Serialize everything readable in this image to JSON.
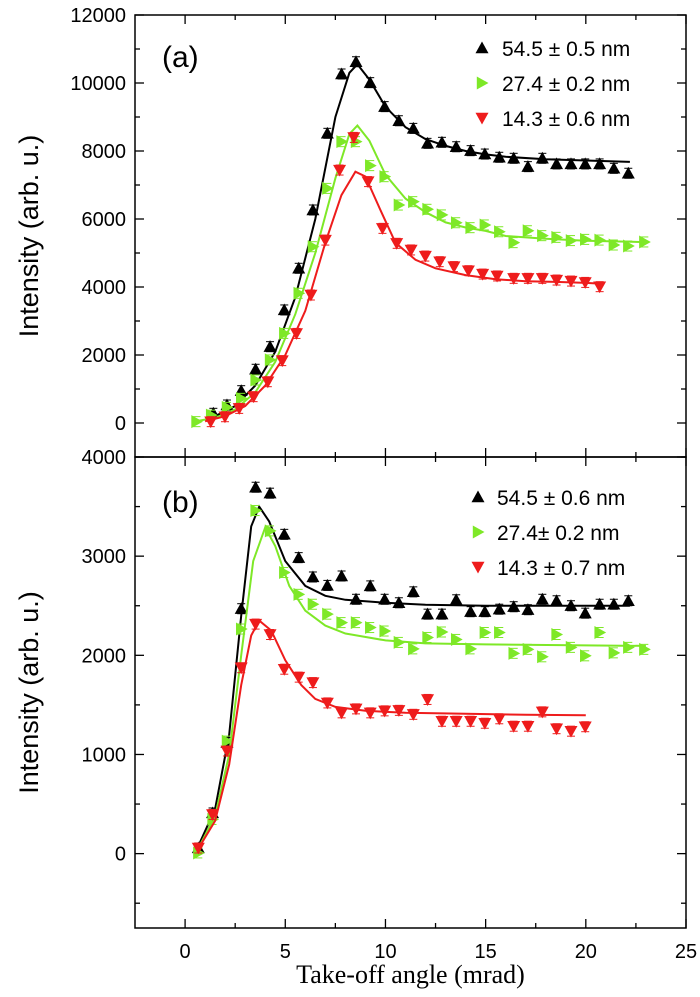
{
  "chart_data": [
    {
      "type": "scatter",
      "panel_label": "(a)",
      "xlabel": "Take-off angle (mrad)",
      "ylabel": "Intensity (arb. u.)",
      "xlim": [
        -2.5,
        25
      ],
      "ylim": [
        -1000,
        12000
      ],
      "xticks": [
        0,
        5,
        10,
        15,
        20,
        25
      ],
      "yticks": [
        0,
        2000,
        4000,
        6000,
        8000,
        10000,
        12000
      ],
      "grid": false,
      "legend_position": "top-right",
      "series": [
        {
          "name": "54.5 ± 0.5 nm",
          "color": "#000000",
          "marker": "triangle-up",
          "x": [
            1.41,
            2.09,
            2.8,
            3.52,
            4.24,
            4.95,
            5.67,
            6.38,
            7.1,
            7.81,
            8.53,
            9.24,
            9.96,
            10.67,
            11.39,
            12.1,
            12.82,
            13.53,
            14.25,
            14.96,
            15.68,
            16.4,
            17.11,
            17.83,
            18.54,
            19.26,
            19.97,
            20.69,
            21.4,
            22.12
          ],
          "y": [
            285,
            529,
            950,
            1580,
            2245,
            3325,
            4550,
            6265,
            8520,
            10265,
            10625,
            10010,
            9305,
            8890,
            8665,
            8225,
            8255,
            8125,
            8010,
            7910,
            7815,
            7785,
            7540,
            7785,
            7620,
            7620,
            7620,
            7620,
            7490,
            7345
          ],
          "fit_x": [
            1.5,
            2.5,
            3.5,
            4.5,
            5.5,
            6.5,
            7.5,
            8.2,
            8.6,
            9.2,
            10,
            11,
            12,
            13,
            14,
            15,
            16,
            18,
            20,
            22.2
          ],
          "fit_y": [
            200,
            500,
            1100,
            2100,
            3700,
            6000,
            9000,
            10300,
            10550,
            10100,
            9300,
            8700,
            8350,
            8150,
            8000,
            7900,
            7830,
            7760,
            7720,
            7680
          ]
        },
        {
          "name": "27.4 ± 0.2 nm",
          "color": "#7ee827",
          "marker": "triangle-right",
          "x": [
            0.57,
            1.3,
            2.09,
            2.8,
            3.52,
            4.24,
            4.95,
            5.67,
            6.38,
            7.1,
            7.81,
            8.53,
            9.24,
            9.96,
            10.67,
            11.39,
            12.1,
            12.82,
            13.53,
            14.25,
            14.96,
            15.68,
            16.4,
            17.11,
            17.83,
            18.54,
            19.26,
            19.97,
            20.69,
            21.4,
            22.12,
            22.92
          ],
          "y": [
            40,
            230,
            460,
            725,
            1265,
            1855,
            2635,
            3815,
            5185,
            6900,
            8275,
            8275,
            7570,
            7245,
            6410,
            6510,
            6285,
            6120,
            5890,
            5745,
            5825,
            5625,
            5305,
            5655,
            5510,
            5460,
            5365,
            5400,
            5380,
            5235,
            5205,
            5325
          ],
          "fit_x": [
            0.5,
            1.5,
            2.5,
            3.5,
            4.5,
            5.5,
            6.5,
            7.5,
            8.2,
            8.6,
            9.2,
            10,
            11,
            12,
            13,
            14,
            15,
            16,
            18,
            20,
            23
          ],
          "fit_y": [
            50,
            150,
            400,
            900,
            1800,
            3200,
            5000,
            7200,
            8500,
            8750,
            8300,
            7300,
            6600,
            6200,
            5900,
            5750,
            5650,
            5500,
            5420,
            5360,
            5320
          ]
        },
        {
          "name": "14.3 ± 0.6 nm",
          "color": "#ee1c1c",
          "marker": "triangle-down",
          "x": [
            1.28,
            1.99,
            2.7,
            3.42,
            4.13,
            4.85,
            5.56,
            6.28,
            7.0,
            7.71,
            8.42,
            9.13,
            9.85,
            10.56,
            11.28,
            11.99,
            12.71,
            13.42,
            14.14,
            14.85,
            15.57,
            16.4,
            17.11,
            17.83,
            18.54,
            19.26,
            19.97,
            20.69
          ],
          "y": [
            40,
            185,
            430,
            775,
            1215,
            1835,
            2635,
            3765,
            5380,
            7440,
            8400,
            7100,
            5725,
            5285,
            5090,
            4910,
            4745,
            4600,
            4480,
            4380,
            4325,
            4255,
            4255,
            4255,
            4205,
            4175,
            4135,
            4010
          ],
          "fit_x": [
            1,
            2,
            3,
            4,
            5,
            6,
            7,
            7.8,
            8.5,
            9,
            9.8,
            10.5,
            11.5,
            12.5,
            14,
            15.5,
            17,
            18.5,
            20,
            20.7
          ],
          "fit_y": [
            50,
            200,
            500,
            1100,
            2000,
            3300,
            5300,
            6700,
            7390,
            7250,
            6200,
            5300,
            4800,
            4550,
            4350,
            4230,
            4170,
            4150,
            4120,
            4100
          ]
        }
      ]
    },
    {
      "type": "scatter",
      "panel_label": "(b)",
      "xlabel": "Take-off angle (mrad)",
      "ylabel": "Intensity (arb. u.)",
      "xlim": [
        -2.5,
        25
      ],
      "ylim": [
        -750,
        4000
      ],
      "xticks": [
        0,
        5,
        10,
        15,
        20,
        25
      ],
      "yticks": [
        0,
        1000,
        2000,
        3000,
        4000
      ],
      "grid": false,
      "legend_position": "top-right",
      "series": [
        {
          "name": "54.5 ± 0.6 nm",
          "color": "#000000",
          "marker": "triangle-up",
          "x": [
            0.66,
            1.37,
            2.09,
            2.8,
            3.52,
            4.24,
            4.95,
            5.67,
            6.38,
            7.1,
            7.81,
            8.53,
            9.24,
            9.96,
            10.67,
            11.39,
            12.1,
            12.82,
            13.53,
            14.25,
            14.96,
            15.68,
            16.4,
            17.11,
            17.83,
            18.54,
            19.26,
            19.97,
            20.69,
            21.4,
            22.12
          ],
          "y": [
            57,
            410,
            1120,
            2470,
            3695,
            3635,
            3220,
            2985,
            2790,
            2705,
            2800,
            2565,
            2700,
            2565,
            2530,
            2640,
            2415,
            2415,
            2560,
            2440,
            2440,
            2465,
            2490,
            2460,
            2565,
            2550,
            2500,
            2425,
            2515,
            2515,
            2550
          ],
          "fit_x": [
            0.6,
            1.5,
            2.2,
            2.8,
            3.3,
            3.7,
            4.2,
            5,
            6,
            7,
            8,
            10,
            12,
            15,
            18,
            22.2
          ],
          "fit_y": [
            50,
            450,
            1200,
            2400,
            3300,
            3500,
            3350,
            2950,
            2700,
            2600,
            2560,
            2530,
            2510,
            2500,
            2500,
            2500
          ]
        },
        {
          "name": "27.4± 0.2 nm",
          "color": "#7ee827",
          "marker": "triangle-right",
          "x": [
            0.66,
            1.37,
            2.09,
            2.8,
            3.52,
            4.24,
            4.95,
            5.67,
            6.38,
            7.1,
            7.81,
            8.53,
            9.24,
            9.96,
            10.67,
            11.39,
            12.1,
            12.82,
            13.53,
            14.25,
            14.96,
            15.68,
            16.4,
            17.11,
            17.83,
            18.54,
            19.26,
            19.97,
            20.69,
            21.4,
            22.12,
            22.92
          ],
          "y": [
            7,
            345,
            1135,
            2265,
            3460,
            3255,
            2835,
            2615,
            2515,
            2415,
            2330,
            2330,
            2280,
            2245,
            2130,
            2065,
            2180,
            2235,
            2160,
            2065,
            2230,
            2230,
            2020,
            2060,
            1985,
            2210,
            2080,
            1995,
            2230,
            2025,
            2080,
            2060
          ],
          "fit_x": [
            0.6,
            1.5,
            2.2,
            2.8,
            3.4,
            4,
            4.5,
            5.2,
            6,
            7,
            8,
            10,
            12,
            15,
            20,
            23
          ],
          "fit_y": [
            30,
            380,
            1000,
            2000,
            2950,
            3290,
            3100,
            2700,
            2450,
            2300,
            2220,
            2150,
            2120,
            2110,
            2100,
            2095
          ]
        },
        {
          "name": "14.3 ± 0.7 nm",
          "color": "#ee1c1c",
          "marker": "triangle-down",
          "x": [
            0.66,
            1.37,
            2.09,
            2.8,
            3.52,
            4.24,
            4.95,
            5.67,
            6.38,
            7.1,
            7.81,
            8.53,
            9.24,
            9.96,
            10.67,
            11.39,
            12.1,
            12.82,
            13.53,
            14.25,
            14.96,
            15.68,
            16.4,
            17.11,
            17.83,
            18.54,
            19.26,
            19.97
          ],
          "y": [
            57,
            395,
            1035,
            1875,
            2315,
            2210,
            1860,
            1780,
            1725,
            1520,
            1420,
            1460,
            1420,
            1440,
            1445,
            1405,
            1555,
            1335,
            1335,
            1335,
            1315,
            1360,
            1285,
            1285,
            1430,
            1260,
            1235,
            1280
          ],
          "fit_x": [
            0.6,
            1.5,
            2.2,
            2.8,
            3.3,
            3.7,
            4.3,
            5,
            5.8,
            6.5,
            7.5,
            9,
            11,
            14,
            17,
            20
          ],
          "fit_y": [
            30,
            330,
            900,
            1700,
            2200,
            2350,
            2250,
            1950,
            1700,
            1560,
            1480,
            1440,
            1420,
            1410,
            1400,
            1395
          ]
        }
      ]
    }
  ]
}
